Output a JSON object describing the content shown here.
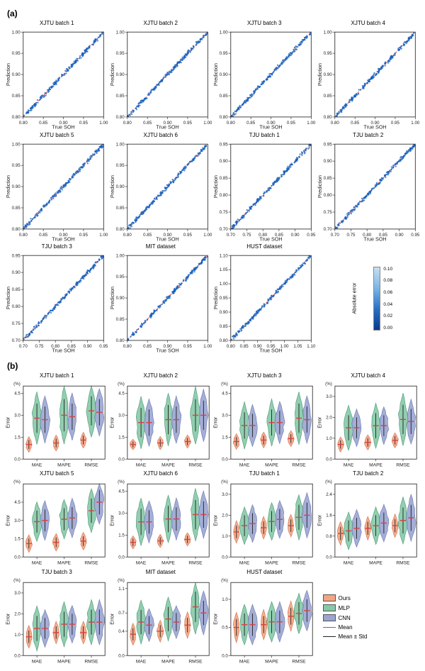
{
  "colors": {
    "scatter_dark": "#1560bd",
    "scatter_light": "#a3cde9",
    "diag_line": "#e03838",
    "axis": "#222222",
    "violin_ours_fill": "#f4a582",
    "violin_ours_stroke": "#d0704f",
    "violin_mlp_fill": "#86c9a7",
    "violin_mlp_stroke": "#4a9976",
    "violin_cnn_fill": "#9aa5d1",
    "violin_cnn_stroke": "#6d79b0",
    "mean_line": "#d84343",
    "std_line": "#222222",
    "cb_start": "#0a3a8a",
    "cb_end": "#c5e0f2"
  },
  "panel_a": {
    "label": "(a)",
    "ylabel": "Prediction",
    "xlabel": "True SOH",
    "colorbar": {
      "label": "Absolute error",
      "ticks": [
        "0.10",
        "0.08",
        "0.06",
        "0.04",
        "0.02",
        "0.00"
      ]
    },
    "plots": [
      {
        "title": "XJTU batch 1",
        "xlim": [
          0.8,
          1.0
        ],
        "ylim": [
          0.8,
          1.0
        ],
        "xticks": [
          "0.80",
          "0.85",
          "0.90",
          "0.95",
          "1.00"
        ],
        "yticks": [
          "1.00",
          "0.95",
          "0.90",
          "0.85",
          "0.80"
        ]
      },
      {
        "title": "XJTU batch 2",
        "xlim": [
          0.8,
          1.0
        ],
        "ylim": [
          0.8,
          1.0
        ],
        "xticks": [
          "0.80",
          "0.85",
          "0.90",
          "0.95",
          "1.00"
        ],
        "yticks": [
          "1.00",
          "0.95",
          "0.90",
          "0.85",
          "0.80"
        ]
      },
      {
        "title": "XJTU batch 3",
        "xlim": [
          0.8,
          1.0
        ],
        "ylim": [
          0.8,
          1.0
        ],
        "xticks": [
          "0.80",
          "0.85",
          "0.90",
          "0.95",
          "1.00"
        ],
        "yticks": [
          "1.00",
          "0.95",
          "0.90",
          "0.85",
          "0.80"
        ]
      },
      {
        "title": "XJTU batch 4",
        "xlim": [
          0.8,
          1.0
        ],
        "ylim": [
          0.8,
          1.0
        ],
        "xticks": [
          "0.80",
          "0.85",
          "0.90",
          "0.95",
          "1.00"
        ],
        "yticks": [
          "1.00",
          "0.95",
          "0.90",
          "0.85",
          "0.80"
        ]
      },
      {
        "title": "XJTU batch 5",
        "xlim": [
          0.8,
          1.0
        ],
        "ylim": [
          0.8,
          1.0
        ],
        "xticks": [
          "0.80",
          "0.85",
          "0.90",
          "0.95",
          "1.00"
        ],
        "yticks": [
          "1.00",
          "0.95",
          "0.90",
          "0.85",
          "0.80"
        ]
      },
      {
        "title": "XJTU batch 6",
        "xlim": [
          0.8,
          1.0
        ],
        "ylim": [
          0.8,
          1.0
        ],
        "xticks": [
          "0.80",
          "0.85",
          "0.90",
          "0.95",
          "1.00"
        ],
        "yticks": [
          "1.00",
          "0.95",
          "0.90",
          "0.85",
          "0.80"
        ]
      },
      {
        "title": "TJU batch 1",
        "xlim": [
          0.7,
          0.95
        ],
        "ylim": [
          0.7,
          0.95
        ],
        "xticks": [
          "0.70",
          "0.75",
          "0.80",
          "0.85",
          "0.90",
          "0.95"
        ],
        "yticks": [
          "0.95",
          "0.90",
          "0.85",
          "0.80",
          "0.75",
          "0.70"
        ]
      },
      {
        "title": "TJU batch 2",
        "xlim": [
          0.7,
          0.95
        ],
        "ylim": [
          0.7,
          0.95
        ],
        "xticks": [
          "0.70",
          "0.75",
          "0.80",
          "0.85",
          "0.90",
          "0.95"
        ],
        "yticks": [
          "0.95",
          "0.90",
          "0.85",
          "0.80",
          "0.75",
          "0.70"
        ]
      },
      {
        "title": "TJU batch 3",
        "xlim": [
          0.7,
          0.95
        ],
        "ylim": [
          0.7,
          0.95
        ],
        "xticks": [
          "0.70",
          "0.75",
          "0.80",
          "0.85",
          "0.90",
          "0.95"
        ],
        "yticks": [
          "0.95",
          "0.90",
          "0.85",
          "0.80",
          "0.75",
          "0.70"
        ]
      },
      {
        "title": "MIT dataset",
        "xlim": [
          0.8,
          1.0
        ],
        "ylim": [
          0.8,
          1.0
        ],
        "xticks": [
          "0.80",
          "0.85",
          "0.90",
          "0.95",
          "1.00"
        ],
        "yticks": [
          "1.00",
          "0.95",
          "0.90",
          "0.85",
          "0.80"
        ]
      },
      {
        "title": "HUST dataset",
        "xlim": [
          0.8,
          1.1
        ],
        "ylim": [
          0.8,
          1.1
        ],
        "xticks": [
          "0.80",
          "0.85",
          "0.90",
          "0.95",
          "1.00",
          "1.05",
          "1.10"
        ],
        "yticks": [
          "1.10",
          "1.05",
          "1.00",
          "0.95",
          "0.90",
          "0.85",
          "0.80"
        ]
      }
    ]
  },
  "panel_b": {
    "label": "(b)",
    "ylabel": "Error",
    "pct": "(%)",
    "metrics": [
      "MAE",
      "MAPE",
      "RMSE"
    ],
    "legend": [
      {
        "label": "Ours",
        "swatch": "#f4a582",
        "type": "box"
      },
      {
        "label": "MLP",
        "swatch": "#86c9a7",
        "type": "box"
      },
      {
        "label": "CNN",
        "swatch": "#9aa5d1",
        "type": "box"
      },
      {
        "label": "Mean",
        "swatch": "#d84343",
        "type": "line"
      },
      {
        "label": "Mean ± Std",
        "swatch": "#222222",
        "type": "line"
      }
    ],
    "plots": [
      {
        "title": "XJTU batch 1",
        "ylim": [
          0,
          5
        ],
        "yticks": [
          "4.5",
          "3.0",
          "1.5",
          "0.0"
        ],
        "data": {
          "MAE": {
            "ours": [
              1.0,
              0.3
            ],
            "mlp": [
              2.8,
              1.0
            ],
            "cnn": [
              2.7,
              0.9
            ]
          },
          "MAPE": {
            "ours": [
              1.1,
              0.3
            ],
            "mlp": [
              3.0,
              1.1
            ],
            "cnn": [
              2.9,
              0.9
            ]
          },
          "RMSE": {
            "ours": [
              1.3,
              0.3
            ],
            "mlp": [
              3.3,
              1.0
            ],
            "cnn": [
              3.2,
              0.9
            ]
          }
        }
      },
      {
        "title": "XJTU batch 2",
        "ylim": [
          0,
          5
        ],
        "yticks": [
          "4.5",
          "3.0",
          "1.5",
          "0.0"
        ],
        "data": {
          "MAE": {
            "ours": [
              1.0,
              0.2
            ],
            "mlp": [
              2.5,
              1.0
            ],
            "cnn": [
              2.5,
              0.9
            ]
          },
          "MAPE": {
            "ours": [
              1.1,
              0.25
            ],
            "mlp": [
              2.7,
              1.0
            ],
            "cnn": [
              2.7,
              0.9
            ]
          },
          "RMSE": {
            "ours": [
              1.2,
              0.25
            ],
            "mlp": [
              3.0,
              1.1
            ],
            "cnn": [
              3.0,
              1.0
            ]
          }
        }
      },
      {
        "title": "XJTU batch 3",
        "ylim": [
          0,
          5
        ],
        "yticks": [
          "4.5",
          "3.0",
          "1.5",
          "0.0"
        ],
        "data": {
          "MAE": {
            "ours": [
              1.2,
              0.3
            ],
            "mlp": [
              2.3,
              0.9
            ],
            "cnn": [
              2.3,
              0.8
            ]
          },
          "MAPE": {
            "ours": [
              1.3,
              0.3
            ],
            "mlp": [
              2.5,
              0.9
            ],
            "cnn": [
              2.5,
              0.8
            ]
          },
          "RMSE": {
            "ours": [
              1.4,
              0.3
            ],
            "mlp": [
              2.8,
              1.0
            ],
            "cnn": [
              2.7,
              0.9
            ]
          }
        }
      },
      {
        "title": "XJTU batch 4",
        "ylim": [
          0,
          3.5
        ],
        "yticks": [
          "3.0",
          "2.0",
          "1.0",
          "0.0"
        ],
        "data": {
          "MAE": {
            "ours": [
              0.7,
              0.2
            ],
            "mlp": [
              1.5,
              0.6
            ],
            "cnn": [
              1.5,
              0.5
            ]
          },
          "MAPE": {
            "ours": [
              0.8,
              0.2
            ],
            "mlp": [
              1.6,
              0.6
            ],
            "cnn": [
              1.6,
              0.5
            ]
          },
          "RMSE": {
            "ours": [
              0.9,
              0.2
            ],
            "mlp": [
              1.9,
              0.7
            ],
            "cnn": [
              1.8,
              0.6
            ]
          }
        }
      },
      {
        "title": "XJTU batch 5",
        "ylim": [
          0,
          6
        ],
        "yticks": [
          "4.5",
          "3.0",
          "1.5",
          "0.0"
        ],
        "data": {
          "MAE": {
            "ours": [
              1.1,
              0.4
            ],
            "mlp": [
              2.9,
              0.9
            ],
            "cnn": [
              3.0,
              0.9
            ]
          },
          "MAPE": {
            "ours": [
              1.2,
              0.4
            ],
            "mlp": [
              3.1,
              0.9
            ],
            "cnn": [
              3.2,
              0.9
            ]
          },
          "RMSE": {
            "ours": [
              1.3,
              0.4
            ],
            "mlp": [
              3.8,
              1.0
            ],
            "cnn": [
              4.5,
              1.0
            ]
          }
        }
      },
      {
        "title": "XJTU batch 6",
        "ylim": [
          0,
          5
        ],
        "yticks": [
          "4.5",
          "3.0",
          "1.5",
          "0.0"
        ],
        "data": {
          "MAE": {
            "ours": [
              1.0,
              0.25
            ],
            "mlp": [
              2.4,
              0.9
            ],
            "cnn": [
              2.4,
              0.8
            ]
          },
          "MAPE": {
            "ours": [
              1.1,
              0.25
            ],
            "mlp": [
              2.6,
              0.9
            ],
            "cnn": [
              2.6,
              0.8
            ]
          },
          "RMSE": {
            "ours": [
              1.2,
              0.25
            ],
            "mlp": [
              2.9,
              1.0
            ],
            "cnn": [
              2.9,
              0.9
            ]
          }
        }
      },
      {
        "title": "TJU batch 1",
        "ylim": [
          0,
          3.5
        ],
        "yticks": [
          "3.0",
          "2.0",
          "1.0",
          "0.0"
        ],
        "data": {
          "MAE": {
            "ours": [
              1.2,
              0.3
            ],
            "mlp": [
              1.5,
              0.5
            ],
            "cnn": [
              1.6,
              0.5
            ]
          },
          "MAPE": {
            "ours": [
              1.4,
              0.3
            ],
            "mlp": [
              1.7,
              0.5
            ],
            "cnn": [
              1.8,
              0.5
            ]
          },
          "RMSE": {
            "ours": [
              1.5,
              0.3
            ],
            "mlp": [
              1.9,
              0.6
            ],
            "cnn": [
              2.0,
              0.6
            ]
          }
        }
      },
      {
        "title": "TJU batch 2",
        "ylim": [
          0,
          2.8
        ],
        "yticks": [
          "2.4",
          "1.6",
          "0.8",
          "0.0"
        ],
        "data": {
          "MAE": {
            "ours": [
              0.9,
              0.25
            ],
            "mlp": [
              1.0,
              0.4
            ],
            "cnn": [
              1.1,
              0.4
            ]
          },
          "MAPE": {
            "ours": [
              1.1,
              0.25
            ],
            "mlp": [
              1.2,
              0.4
            ],
            "cnn": [
              1.3,
              0.4
            ]
          },
          "RMSE": {
            "ours": [
              1.2,
              0.25
            ],
            "mlp": [
              1.4,
              0.5
            ],
            "cnn": [
              1.5,
              0.5
            ]
          }
        }
      },
      {
        "title": "TJU batch 3",
        "ylim": [
          0,
          3.5
        ],
        "yticks": [
          "3.0",
          "2.0",
          "1.0",
          "0.0"
        ],
        "data": {
          "MAE": {
            "ours": [
              0.9,
              0.3
            ],
            "mlp": [
              1.3,
              0.6
            ],
            "cnn": [
              1.3,
              0.5
            ]
          },
          "MAPE": {
            "ours": [
              1.1,
              0.3
            ],
            "mlp": [
              1.5,
              0.6
            ],
            "cnn": [
              1.5,
              0.5
            ]
          },
          "RMSE": {
            "ours": [
              1.1,
              0.3
            ],
            "mlp": [
              1.6,
              0.6
            ],
            "cnn": [
              1.6,
              0.6
            ]
          }
        }
      },
      {
        "title": "MIT dataset",
        "ylim": [
          0,
          1.2
        ],
        "yticks": [
          "1.1",
          "0.7",
          "0.4",
          "0.0"
        ],
        "data": {
          "MAE": {
            "ours": [
              0.35,
              0.1
            ],
            "mlp": [
              0.55,
              0.2
            ],
            "cnn": [
              0.5,
              0.15
            ]
          },
          "MAPE": {
            "ours": [
              0.4,
              0.1
            ],
            "mlp": [
              0.6,
              0.2
            ],
            "cnn": [
              0.55,
              0.15
            ]
          },
          "RMSE": {
            "ours": [
              0.5,
              0.12
            ],
            "mlp": [
              0.8,
              0.25
            ],
            "cnn": [
              0.7,
              0.2
            ]
          }
        }
      },
      {
        "title": "HUST dataset",
        "ylim": [
          0,
          1.3
        ],
        "yticks": [
          "1.0",
          "0.5",
          "0.0"
        ],
        "data": {
          "MAE": {
            "ours": [
              0.5,
              0.15
            ],
            "mlp": [
              0.55,
              0.2
            ],
            "cnn": [
              0.55,
              0.2
            ]
          },
          "MAPE": {
            "ours": [
              0.55,
              0.15
            ],
            "mlp": [
              0.6,
              0.2
            ],
            "cnn": [
              0.6,
              0.2
            ]
          },
          "RMSE": {
            "ours": [
              0.7,
              0.15
            ],
            "mlp": [
              0.75,
              0.2
            ],
            "cnn": [
              0.8,
              0.2
            ]
          }
        }
      }
    ]
  }
}
